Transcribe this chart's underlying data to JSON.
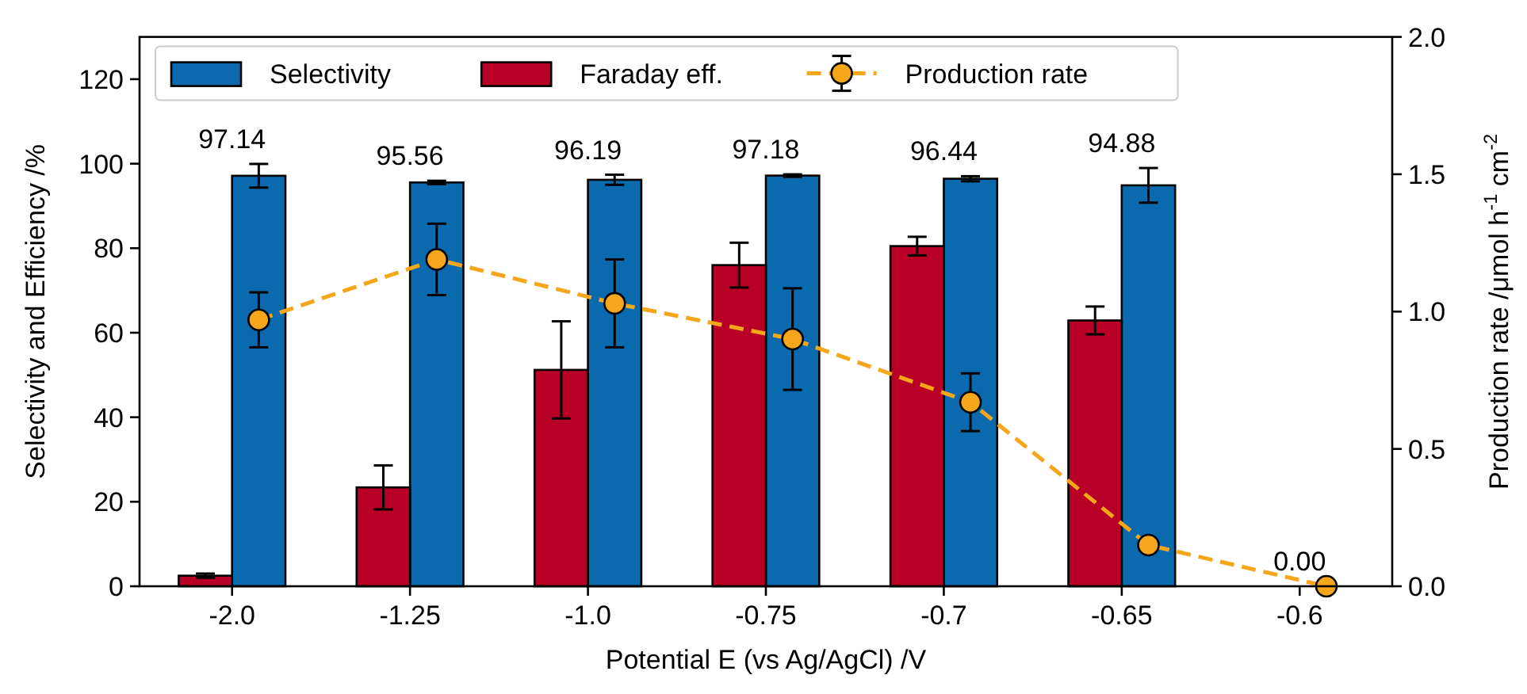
{
  "chart_data": {
    "type": "bar",
    "xlabel": "Potential E (vs Ag/AgCl) /V",
    "ylabel": "Selectivity and Efficiency /%",
    "y2label": "Production rate /μmol h$^{-1}$ cm$^{-2}$",
    "categories": [
      "-2.0",
      "-1.25",
      "-1.0",
      "-0.75",
      "-0.7",
      "-0.65",
      "-0.6"
    ],
    "series": [
      {
        "name": "Selectivity",
        "color": "#0a6aad",
        "values": [
          97.14,
          95.56,
          96.19,
          97.18,
          96.44,
          94.88,
          0
        ],
        "errors": [
          2.8,
          0.4,
          1.2,
          0.3,
          0.6,
          4.1,
          null
        ],
        "value_labels": [
          "97.14",
          "95.56",
          "96.19",
          "97.18",
          "96.44",
          "94.88",
          "0.00"
        ]
      },
      {
        "name": "Faraday eff.",
        "color": "#b80026",
        "values": [
          2.5,
          23.4,
          51.2,
          76,
          80.5,
          62.9,
          null
        ],
        "errors": [
          0.5,
          5.2,
          11.5,
          5.3,
          2.2,
          3.3,
          null
        ]
      },
      {
        "name": "Production rate",
        "type": "line",
        "axis": "y2",
        "color": "#f5a61b",
        "values": [
          0.97,
          1.19,
          1.03,
          0.9,
          0.67,
          0.15,
          0
        ],
        "errors": [
          0.1,
          0.13,
          0.16,
          0.185,
          0.105,
          null,
          null
        ],
        "marker": "circle",
        "line_style": "dashed"
      }
    ],
    "ylim": [
      0,
      130
    ],
    "yticks": [
      0,
      20,
      40,
      60,
      80,
      100,
      120
    ],
    "y2lim": [
      0,
      2
    ],
    "y2ticks": [
      {
        "value": 0,
        "label": "0.0"
      },
      {
        "value": 0.5,
        "label": "0.5"
      },
      {
        "value": 1,
        "label": "1.0"
      },
      {
        "value": 1.5,
        "label": "1.5"
      },
      {
        "value": 2,
        "label": "2.0"
      }
    ],
    "grid": false,
    "legend": "top left"
  }
}
